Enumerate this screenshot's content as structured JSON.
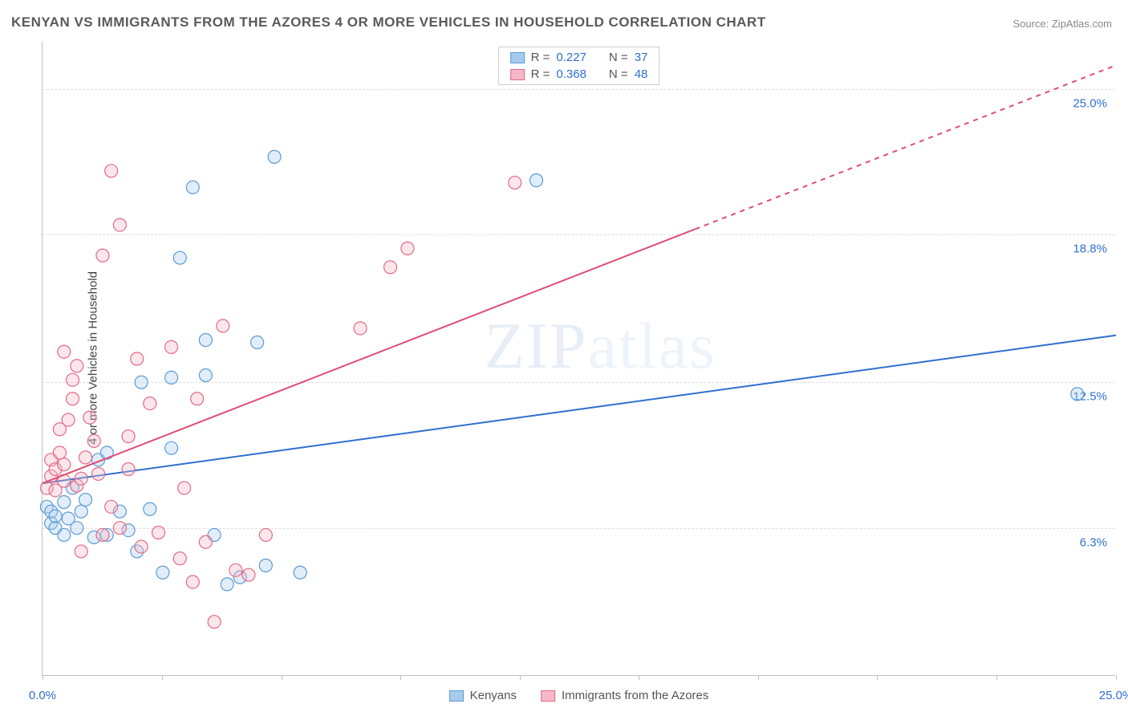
{
  "title": "KENYAN VS IMMIGRANTS FROM THE AZORES 4 OR MORE VEHICLES IN HOUSEHOLD CORRELATION CHART",
  "source": "Source: ZipAtlas.com",
  "y_axis_label": "4 or more Vehicles in Household",
  "watermark": "ZIPatlas",
  "chart": {
    "type": "scatter",
    "xlim": [
      0,
      25
    ],
    "ylim": [
      0,
      27
    ],
    "x_ticks": [
      0,
      2.78,
      5.56,
      8.33,
      11.11,
      13.89,
      16.67,
      19.44,
      22.22,
      25
    ],
    "x_tick_labels": {
      "0": "0.0%",
      "25": "25.0%"
    },
    "x_tick_label_color": "#2f6fd0",
    "y_gridlines": [
      6.3,
      12.5,
      18.8,
      25.0
    ],
    "y_tick_labels": [
      "6.3%",
      "12.5%",
      "18.8%",
      "25.0%"
    ],
    "y_tick_label_color": "#2f6fd0",
    "grid_color": "#dddddd",
    "background_color": "#ffffff",
    "axis_color": "#c0c0c0",
    "marker_radius": 8,
    "marker_stroke_width": 1.2,
    "marker_fill_opacity": 0.35,
    "line_width": 2,
    "series": [
      {
        "name": "Kenyans",
        "color_stroke": "#5b9bd5",
        "color_fill": "#a8cbed",
        "R": "0.227",
        "N": "37",
        "trend": {
          "x1": 0,
          "y1": 8.2,
          "x2": 25,
          "y2": 14.5,
          "solid_until_x": 25
        },
        "trend_color": "#2f6fd0",
        "points": [
          [
            0.1,
            7.2
          ],
          [
            0.2,
            6.5
          ],
          [
            0.2,
            7.0
          ],
          [
            0.3,
            6.3
          ],
          [
            0.3,
            6.8
          ],
          [
            0.5,
            7.4
          ],
          [
            0.5,
            6.0
          ],
          [
            0.6,
            6.7
          ],
          [
            0.7,
            8.0
          ],
          [
            0.8,
            6.3
          ],
          [
            0.9,
            7.0
          ],
          [
            1.0,
            7.5
          ],
          [
            1.2,
            5.9
          ],
          [
            1.3,
            9.2
          ],
          [
            1.5,
            6.0
          ],
          [
            1.5,
            9.5
          ],
          [
            1.8,
            7.0
          ],
          [
            2.0,
            6.2
          ],
          [
            2.2,
            5.3
          ],
          [
            2.3,
            12.5
          ],
          [
            2.5,
            7.1
          ],
          [
            2.8,
            4.4
          ],
          [
            3.0,
            12.7
          ],
          [
            3.0,
            9.7
          ],
          [
            3.2,
            17.8
          ],
          [
            3.5,
            20.8
          ],
          [
            3.8,
            12.8
          ],
          [
            3.8,
            14.3
          ],
          [
            4.0,
            6.0
          ],
          [
            4.3,
            3.9
          ],
          [
            4.6,
            4.2
          ],
          [
            5.0,
            14.2
          ],
          [
            5.2,
            4.7
          ],
          [
            5.4,
            22.1
          ],
          [
            6.0,
            4.4
          ],
          [
            11.5,
            21.1
          ],
          [
            24.1,
            12.0
          ]
        ]
      },
      {
        "name": "Immigrants from the Azores",
        "color_stroke": "#e26a87",
        "color_fill": "#f4b8c7",
        "R": "0.368",
        "N": "48",
        "trend": {
          "x1": 0,
          "y1": 8.2,
          "x2": 25,
          "y2": 26.0,
          "solid_until_x": 15.2
        },
        "trend_color": "#e04c72",
        "points": [
          [
            0.1,
            8.0
          ],
          [
            0.2,
            8.5
          ],
          [
            0.2,
            9.2
          ],
          [
            0.3,
            7.9
          ],
          [
            0.3,
            8.8
          ],
          [
            0.4,
            9.5
          ],
          [
            0.4,
            10.5
          ],
          [
            0.5,
            8.3
          ],
          [
            0.5,
            13.8
          ],
          [
            0.5,
            9.0
          ],
          [
            0.6,
            10.9
          ],
          [
            0.7,
            11.8
          ],
          [
            0.7,
            12.6
          ],
          [
            0.8,
            8.1
          ],
          [
            0.8,
            13.2
          ],
          [
            0.9,
            8.4
          ],
          [
            1.0,
            9.3
          ],
          [
            1.1,
            11.0
          ],
          [
            1.2,
            10.0
          ],
          [
            1.3,
            8.6
          ],
          [
            1.4,
            6.0
          ],
          [
            1.4,
            17.9
          ],
          [
            1.6,
            21.5
          ],
          [
            1.6,
            7.2
          ],
          [
            1.8,
            19.2
          ],
          [
            1.8,
            6.3
          ],
          [
            2.0,
            10.2
          ],
          [
            2.0,
            8.8
          ],
          [
            2.2,
            13.5
          ],
          [
            2.3,
            5.5
          ],
          [
            2.5,
            11.6
          ],
          [
            2.7,
            6.1
          ],
          [
            3.0,
            14.0
          ],
          [
            3.2,
            5.0
          ],
          [
            3.3,
            8.0
          ],
          [
            3.5,
            4.0
          ],
          [
            3.6,
            11.8
          ],
          [
            3.8,
            5.7
          ],
          [
            4.0,
            2.3
          ],
          [
            4.2,
            14.9
          ],
          [
            4.5,
            4.5
          ],
          [
            4.8,
            4.3
          ],
          [
            5.2,
            6.0
          ],
          [
            7.4,
            14.8
          ],
          [
            8.1,
            17.4
          ],
          [
            8.5,
            18.2
          ],
          [
            11.0,
            21.0
          ],
          [
            0.9,
            5.3
          ]
        ]
      }
    ]
  },
  "stat_legend": {
    "rows": [
      {
        "swatch_fill": "#a8cbed",
        "swatch_stroke": "#5b9bd5",
        "R_label": "R =",
        "R_val": "0.227",
        "N_label": "N =",
        "N_val": "37"
      },
      {
        "swatch_fill": "#f4b8c7",
        "swatch_stroke": "#e26a87",
        "R_label": "R =",
        "R_val": "0.368",
        "N_label": "N =",
        "N_val": "48"
      }
    ]
  },
  "bottom_legend": {
    "items": [
      {
        "swatch_fill": "#a8cbed",
        "swatch_stroke": "#5b9bd5",
        "label": "Kenyans"
      },
      {
        "swatch_fill": "#f4b8c7",
        "swatch_stroke": "#e26a87",
        "label": "Immigrants from the Azores"
      }
    ]
  }
}
